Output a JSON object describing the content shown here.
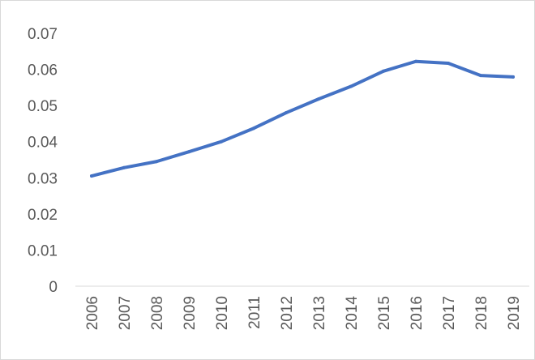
{
  "chart_data": {
    "type": "line",
    "title": "",
    "xlabel": "",
    "ylabel": "",
    "x": [
      "2006",
      "2007",
      "2008",
      "2009",
      "2010",
      "2011",
      "2012",
      "2013",
      "2014",
      "2015",
      "2016",
      "2017",
      "2018",
      "2019"
    ],
    "series": [
      {
        "values": [
          0.0305,
          0.0328,
          0.0345,
          0.0372,
          0.04,
          0.0437,
          0.048,
          0.0518,
          0.0553,
          0.0595,
          0.0622,
          0.0617,
          0.0583,
          0.0579
        ],
        "color": "#4472C4"
      }
    ],
    "y_ticks": [
      "0",
      "0.01",
      "0.02",
      "0.03",
      "0.04",
      "0.05",
      "0.06",
      "0.07"
    ],
    "ylim": [
      0,
      0.07
    ],
    "grid": false,
    "legend": "none",
    "colors": {
      "axis": "#d9d9d9",
      "tick_text": "#595959"
    }
  }
}
